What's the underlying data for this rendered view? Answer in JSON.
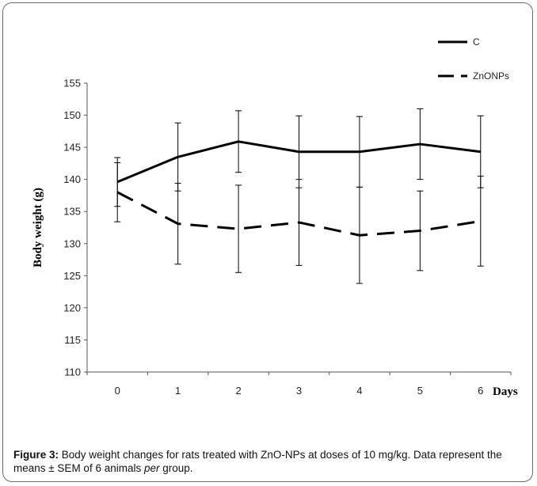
{
  "chart_data": {
    "type": "line",
    "title": "",
    "xlabel": "Days",
    "ylabel": "Body  weight (g)",
    "x": [
      0,
      1,
      2,
      3,
      4,
      5,
      6
    ],
    "xticks": [
      "0",
      "1",
      "2",
      "3",
      "4",
      "5",
      "6"
    ],
    "yticks": [
      "110",
      "115",
      "120",
      "125",
      "130",
      "135",
      "140",
      "145",
      "150",
      "155"
    ],
    "ylim": [
      110,
      155
    ],
    "grid": false,
    "legend_position": "top-right",
    "series": [
      {
        "name": "C",
        "style": "solid",
        "values": [
          139.6,
          143.5,
          145.9,
          144.3,
          144.3,
          145.5,
          144.3
        ],
        "error": [
          3.8,
          5.3,
          4.8,
          5.6,
          5.5,
          5.5,
          5.6
        ]
      },
      {
        "name": "ZnONPs",
        "style": "dashed",
        "values": [
          138.0,
          133.1,
          132.3,
          133.3,
          131.3,
          132.0,
          133.5
        ],
        "error": [
          4.6,
          6.3,
          6.8,
          6.7,
          7.5,
          6.2,
          7.0
        ]
      }
    ]
  },
  "caption": {
    "label": "Figure 3:",
    "text_before": " Body weight changes for rats treated with ZnO-NPs at doses of 10 mg/kg. Data represent the means ± SEM of 6 animals ",
    "italic": "per",
    "text_after": " group."
  },
  "colors": {
    "line": "#000000",
    "frame": "#6b6b6b"
  }
}
